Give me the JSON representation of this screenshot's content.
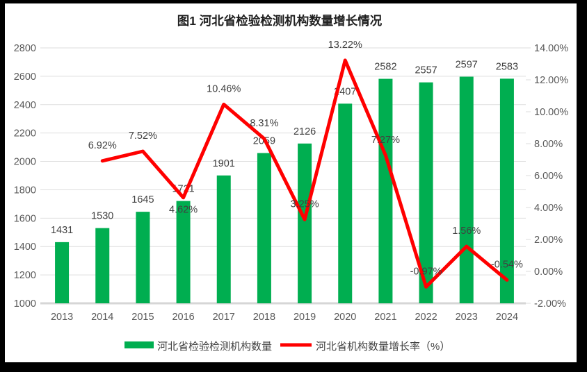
{
  "frame": {
    "border_color": "#000000",
    "background": "#ffffff"
  },
  "chart_data": {
    "type": "bar+line",
    "title": "图1  河北省检验检测机构数量增长情况",
    "categories": [
      "2013",
      "2014",
      "2015",
      "2016",
      "2017",
      "2018",
      "2019",
      "2020",
      "2021",
      "2022",
      "2023",
      "2024"
    ],
    "series": [
      {
        "name": "河北省检验检测机构数量",
        "type": "bar",
        "axis": "left",
        "color": "#00AE50",
        "values": [
          1431,
          1530,
          1645,
          1721,
          1901,
          2059,
          2126,
          2407,
          2582,
          2557,
          2597,
          2583
        ]
      },
      {
        "name": "河北省机构数量增长率（%）",
        "type": "line",
        "axis": "right",
        "color": "#FF0000",
        "values": [
          null,
          6.92,
          7.52,
          4.62,
          10.46,
          8.31,
          3.25,
          13.22,
          7.27,
          -0.97,
          1.56,
          -0.54
        ],
        "point_labels": [
          "",
          "6.92%",
          "7.52%",
          "4.62%",
          "10.46%",
          "8.31%",
          "3.25%",
          "13.22%",
          "7.27%",
          "-0.97%",
          "1.56%",
          "-0.54%"
        ],
        "label_side": [
          "",
          "above",
          "above",
          "below",
          "above",
          "above",
          "above",
          "above",
          "above",
          "above",
          "above",
          "above"
        ]
      }
    ],
    "left_axis": {
      "min": 1000,
      "max": 2800,
      "step": 200,
      "ticks": [
        "1000",
        "1200",
        "1400",
        "1600",
        "1800",
        "2000",
        "2200",
        "2400",
        "2600",
        "2800"
      ]
    },
    "right_axis": {
      "min": -2,
      "max": 14,
      "step": 2,
      "ticks": [
        "-2.00%",
        "0.00%",
        "2.00%",
        "4.00%",
        "6.00%",
        "8.00%",
        "10.00%",
        "12.00%",
        "14.00%"
      ]
    },
    "grid": true,
    "legend_position": "bottom",
    "text_colors": {
      "title": "#1f1f1f",
      "axis": "#595959",
      "data_label": "#404040",
      "legend": "#404040"
    },
    "grid_color": "#dedede",
    "baseline_color": "#d6d6d6"
  }
}
